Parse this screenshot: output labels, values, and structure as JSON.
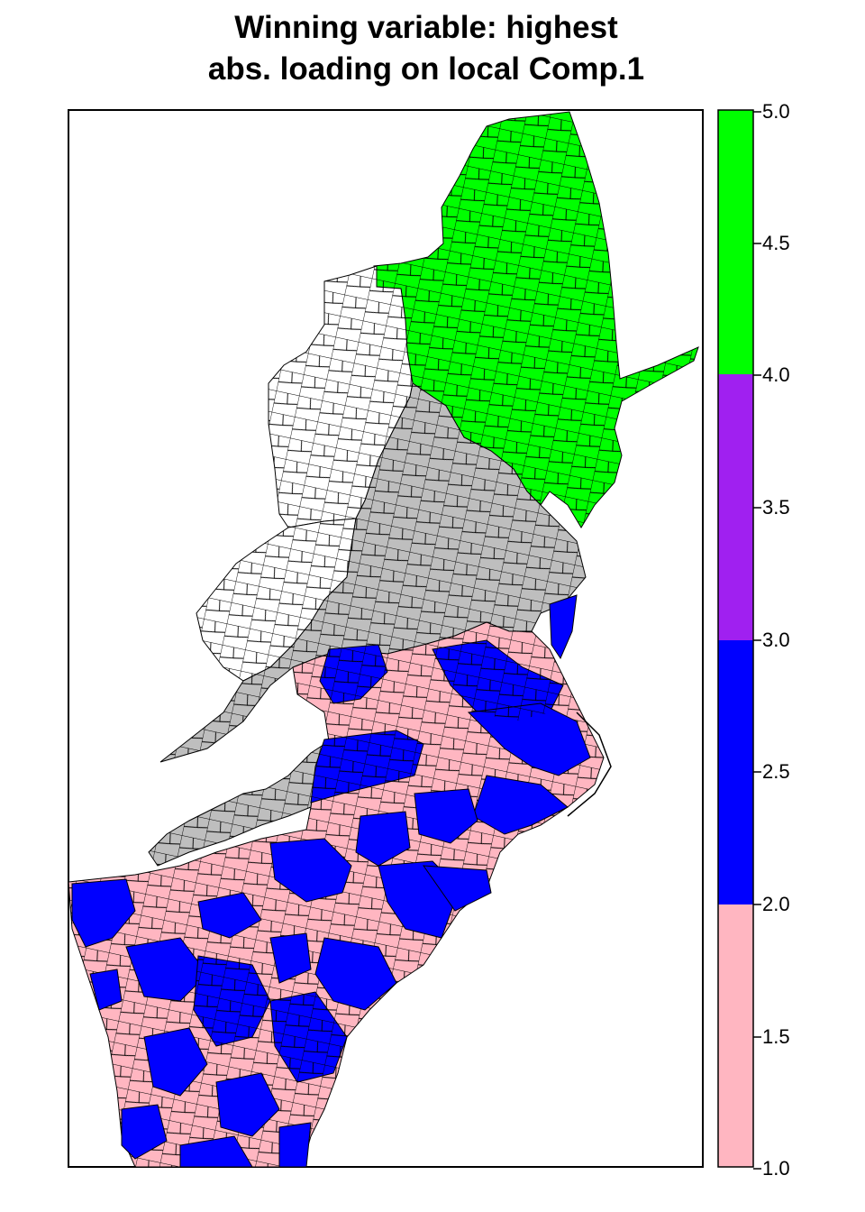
{
  "title": {
    "line1": "Winning variable: highest",
    "line2": "abs. loading on local Comp.1"
  },
  "legend": {
    "ticks": [
      "5.0",
      "4.5",
      "4.0",
      "3.5",
      "3.0",
      "2.5",
      "2.0",
      "1.5",
      "1.0"
    ],
    "bins": [
      {
        "from": 1.0,
        "to": 2.0,
        "color": "#ffb6c1"
      },
      {
        "from": 2.0,
        "to": 3.0,
        "color": "#0000ff"
      },
      {
        "from": 3.0,
        "to": 4.0,
        "color": "#a020f0"
      },
      {
        "from": 4.0,
        "to": 5.0,
        "color": "#00ff00"
      }
    ]
  },
  "map_regions": [
    {
      "region": "new-england-northeast",
      "value": 5,
      "color": "#00ff00"
    },
    {
      "region": "western-pennsylvania",
      "value": null,
      "color": "#ffffff"
    },
    {
      "region": "west-virginia",
      "value": null,
      "color": "#ffffff"
    },
    {
      "region": "maryland-delaware-virginia-west",
      "value": null,
      "color": "#bebebe"
    },
    {
      "region": "virginia-north-carolina-mix",
      "value": 1.5,
      "color": "#ffb6c1"
    },
    {
      "region": "carolinas-georgia-coast",
      "value": 2.5,
      "color": "#0000ff"
    }
  ]
}
